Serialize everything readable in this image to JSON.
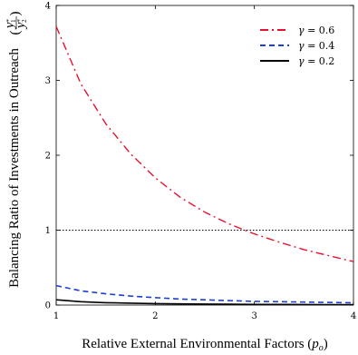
{
  "chart_data": {
    "type": "line",
    "title": "",
    "xlabel": "Relative External Environmental Factors (",
    "xlabel_var": "p",
    "xlabel_sub": "o",
    "xlabel_close": ")",
    "ylabel": "Balancing Ratio of Investments in Outreach",
    "ylabel_frac_num": "y",
    "ylabel_frac_num_sub": "1",
    "ylabel_frac_den": "y",
    "ylabel_frac_den_sub": "2",
    "ylabel_star": "*",
    "xlim": [
      1,
      4
    ],
    "ylim": [
      0,
      4
    ],
    "x_ticks": [
      "1",
      "2",
      "3",
      "4"
    ],
    "y_ticks": [
      "0",
      "1",
      "2",
      "3",
      "4"
    ],
    "reference_line": {
      "y": 1,
      "style": "dotted"
    },
    "legend_position": "top-right",
    "x": [
      1.0,
      1.25,
      1.5,
      1.75,
      2.0,
      2.25,
      2.5,
      2.75,
      3.0,
      3.25,
      3.5,
      3.75,
      4.0
    ],
    "series": [
      {
        "name": "γ = 0.6",
        "color": "#e8112d",
        "dash": "dashdot",
        "values": [
          3.72,
          2.95,
          2.42,
          2.02,
          1.7,
          1.44,
          1.24,
          1.08,
          0.95,
          0.84,
          0.74,
          0.66,
          0.58
        ]
      },
      {
        "name": "γ = 0.4",
        "color": "#1a3fd6",
        "dash": "dashed",
        "values": [
          0.26,
          0.19,
          0.15,
          0.12,
          0.1,
          0.08,
          0.07,
          0.06,
          0.05,
          0.045,
          0.04,
          0.035,
          0.03
        ]
      },
      {
        "name": "γ = 0.2",
        "color": "#000000",
        "dash": "solid",
        "values": [
          0.07,
          0.045,
          0.032,
          0.025,
          0.02,
          0.016,
          0.013,
          0.011,
          0.009,
          0.008,
          0.007,
          0.006,
          0.005
        ]
      }
    ]
  }
}
